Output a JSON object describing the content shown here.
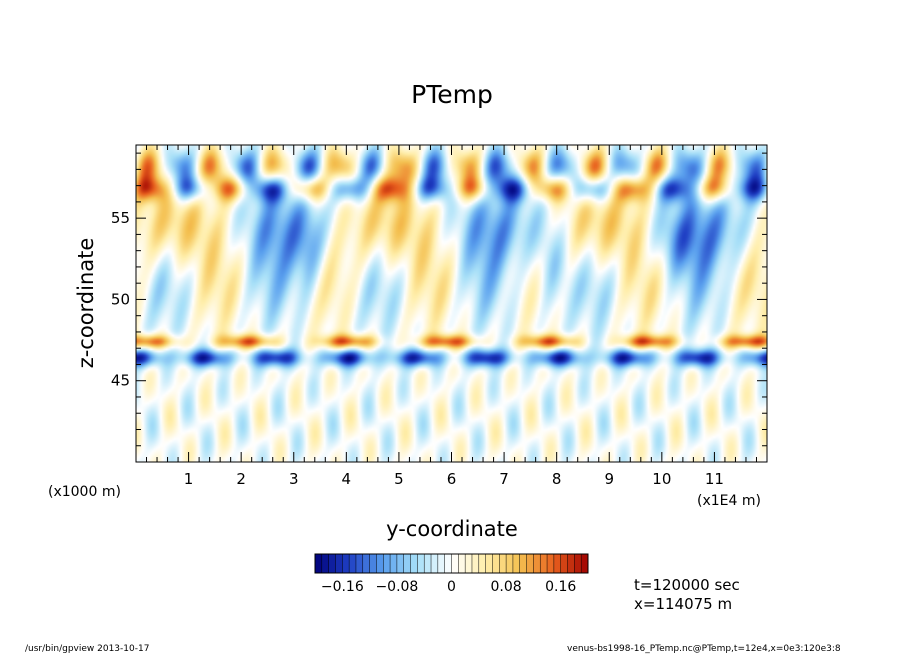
{
  "chart_data": {
    "type": "heatmap",
    "title": "PTemp",
    "xlabel": "y-coordinate",
    "ylabel": "z-coordinate",
    "x_unit_left": "(x1000 m)",
    "x_unit_right": "(x1E4 m)",
    "xlim": [
      0,
      12
    ],
    "ylim": [
      40,
      59.5
    ],
    "x_ticks": [
      {
        "value": 1,
        "label": "1"
      },
      {
        "value": 2,
        "label": "2"
      },
      {
        "value": 3,
        "label": "3"
      },
      {
        "value": 4,
        "label": "4"
      },
      {
        "value": 5,
        "label": "5"
      },
      {
        "value": 6,
        "label": "6"
      },
      {
        "value": 7,
        "label": "7"
      },
      {
        "value": 8,
        "label": "8"
      },
      {
        "value": 9,
        "label": "9"
      },
      {
        "value": 10,
        "label": "10"
      },
      {
        "value": 11,
        "label": "11"
      }
    ],
    "y_ticks": [
      {
        "value": 45,
        "label": "45"
      },
      {
        "value": 50,
        "label": "50"
      },
      {
        "value": 55,
        "label": "55"
      }
    ],
    "colorbar": {
      "min": -0.2,
      "max": 0.2,
      "tick_values": [
        -0.16,
        -0.08,
        0,
        0.08,
        0.16
      ],
      "tick_labels": [
        "−0.16",
        "−0.08",
        "0",
        "0.08",
        "0.16"
      ]
    },
    "colorscale": [
      "#00007a",
      "#1f3fc4",
      "#5aa0ee",
      "#a8e0f8",
      "#ffffff",
      "#ffeeaa",
      "#f4c050",
      "#e8601e",
      "#a00000"
    ]
  },
  "info": {
    "time": "t=120000 sec",
    "position": "x=114075 m"
  },
  "footer": {
    "left": "/usr/bin/gpview   2013-10-17",
    "right": "venus-bs1998-16_PTemp.nc@PTemp,t=12e4,x=0e3:120e3:8"
  }
}
